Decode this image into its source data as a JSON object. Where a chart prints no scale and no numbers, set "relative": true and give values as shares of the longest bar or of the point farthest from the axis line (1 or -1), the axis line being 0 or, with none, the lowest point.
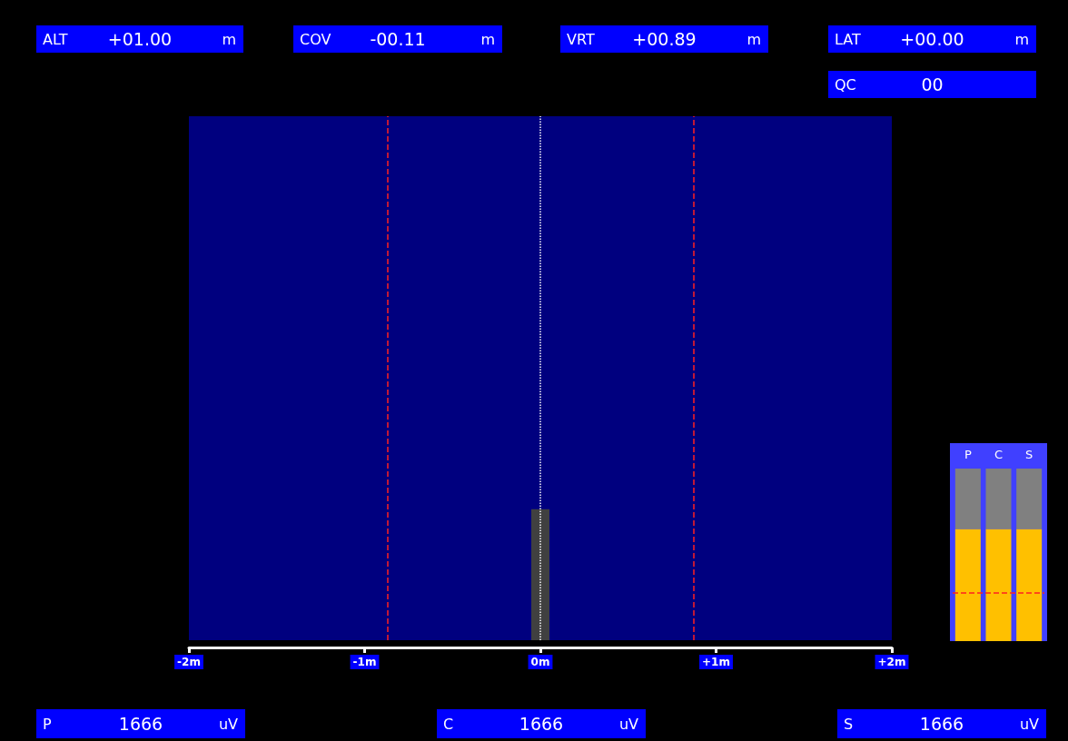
{
  "chart_data": [
    {
      "type": "bar",
      "relative": true,
      "x": [
        0
      ],
      "values": [
        1
      ],
      "color": "#404040",
      "xlim": [
        -2,
        2
      ],
      "xticks": [
        {
          "value": -2,
          "label": "-2m"
        },
        {
          "value": -1,
          "label": "-1m"
        },
        {
          "value": 0,
          "label": "0m"
        },
        {
          "value": 1,
          "label": "+1m"
        },
        {
          "value": 2,
          "label": "+2m"
        }
      ],
      "ref_lines": [
        {
          "axis": "x",
          "value": -0.87,
          "color": "#ff2020",
          "line_style": "dashed"
        },
        {
          "axis": "x",
          "value": 0.87,
          "color": "#ff2020",
          "line_style": "dashed"
        },
        {
          "axis": "x",
          "value": 0,
          "color": "#ffffff",
          "line_style": "dotted"
        }
      ],
      "annotations": [
        "ALT +01.00 m",
        "COV -00.11 m",
        "VRT +00.89 m",
        "LAT +00.00 m",
        "QC 00",
        "P 1666 uV",
        "C 1666 uV",
        "S 1666 uV"
      ]
    },
    {
      "type": "bar",
      "relative": true,
      "stacked": true,
      "categories": [
        "P",
        "C",
        "S"
      ],
      "series": [
        {
          "color": "#ffc000",
          "values": [
            0.65,
            0.65,
            0.65
          ]
        },
        {
          "color": "#808080",
          "values": [
            0.35,
            0.35,
            0.35
          ]
        }
      ],
      "ref_lines": [
        {
          "axis": "y",
          "value": 0.28,
          "color": "#ff2020",
          "line_style": "dashed"
        }
      ]
    }
  ]
}
